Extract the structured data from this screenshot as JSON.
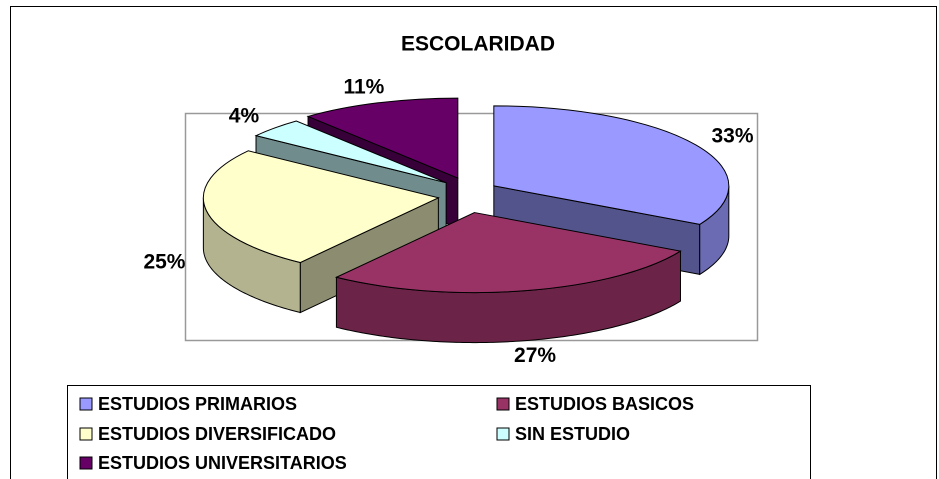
{
  "chart_data": {
    "type": "pie",
    "title": "ESCOLARIDAD",
    "categories": [
      "ESTUDIOS PRIMARIOS",
      "ESTUDIOS BASICOS",
      "ESTUDIOS DIVERSIFICADO",
      "SIN ESTUDIO",
      "ESTUDIOS UNIVERSITARIOS"
    ],
    "values": [
      33,
      27,
      25,
      4,
      11
    ],
    "value_labels": [
      "33%",
      "27%",
      "25%",
      "4%",
      "11%"
    ],
    "colors": [
      "#9999ff",
      "#993366",
      "#ffffcc",
      "#ccffff",
      "#660066"
    ],
    "legend": "bottom"
  }
}
